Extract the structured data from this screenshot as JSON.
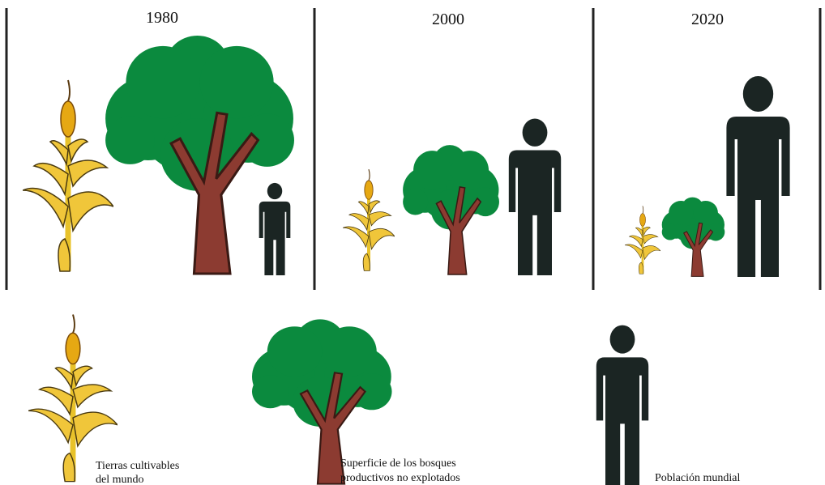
{
  "panels": [
    {
      "year": "1980"
    },
    {
      "year": "2000"
    },
    {
      "year": "2020"
    }
  ],
  "legend": [
    {
      "lines": [
        "Tierras cultivables",
        "del mundo"
      ]
    },
    {
      "lines": [
        "Superficie de los bosques",
        "productivos no explotados"
      ]
    },
    {
      "lines": [
        "Población mundial"
      ]
    }
  ]
}
